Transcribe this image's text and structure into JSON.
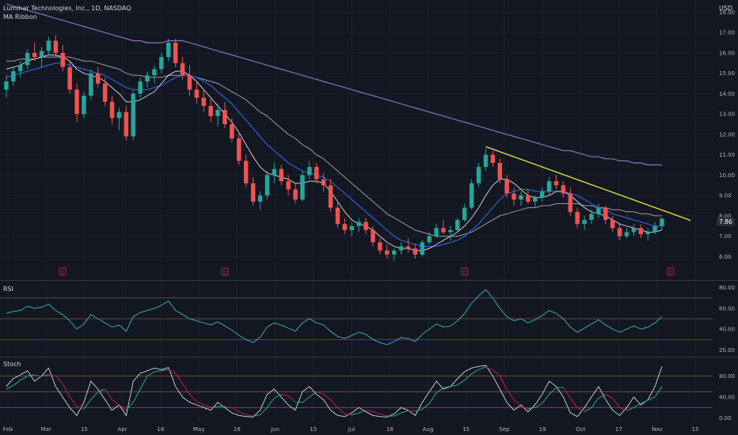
{
  "header": {
    "symbol": "Luminar Technologies, Inc., 1D, NASDAQ",
    "indicator": "MA Ribbon",
    "currency": "USD"
  },
  "panes": {
    "rsi_label": "RSI",
    "stoch_label": "Stoch"
  },
  "colors": {
    "background": "#131722",
    "grid": "#1e222d",
    "up": "#26a69a",
    "down": "#ef5350",
    "ma_fast": "#c9cbd4",
    "ma_mid": "#2f5fd8",
    "ma_slow": "#9a9aa6",
    "ma_long": "#8e6fb8",
    "trendline": "#e8e83a",
    "rsi": "#3aa9a0",
    "stoch_k": "#d1d4dc",
    "stoch_d_up": "#26a69a",
    "stoch_d_down": "#c2185b",
    "earnings": "#c2185b"
  },
  "chart_data": [
    {
      "type": "candlestick",
      "pane": "price",
      "y_ticks": [
        "18.00",
        "17.00",
        "16.00",
        "15.00",
        "14.00",
        "13.00",
        "12.00",
        "11.00",
        "10.00",
        "9.00",
        "8.00",
        "7.00",
        "6.00"
      ],
      "ylim": [
        5.2,
        18.6
      ],
      "last_price": "7.86",
      "x_ticks": [
        "Feb",
        "Mar",
        "15",
        "Apr",
        "18",
        "May",
        "16",
        "Jun",
        "15",
        "Jul",
        "18",
        "Aug",
        "15",
        "Sep",
        "19",
        "Oct",
        "17",
        "Nov",
        "15"
      ],
      "earnings_markers": [
        "E",
        "E",
        "E",
        "E"
      ],
      "ohlc": [
        [
          14.2,
          14.9,
          13.8,
          14.6
        ],
        [
          14.6,
          15.3,
          14.4,
          15.1
        ],
        [
          15.1,
          15.6,
          14.8,
          15.4
        ],
        [
          15.4,
          16.2,
          15.2,
          16.0
        ],
        [
          16.0,
          16.5,
          15.6,
          15.8
        ],
        [
          15.8,
          16.3,
          15.3,
          16.1
        ],
        [
          16.1,
          16.8,
          15.9,
          16.6
        ],
        [
          16.6,
          16.9,
          15.8,
          16.0
        ],
        [
          16.0,
          16.4,
          15.1,
          15.3
        ],
        [
          15.3,
          15.6,
          14.0,
          14.2
        ],
        [
          14.2,
          14.5,
          12.6,
          13.0
        ],
        [
          13.0,
          14.1,
          12.8,
          13.9
        ],
        [
          13.9,
          15.2,
          13.7,
          15.0
        ],
        [
          15.0,
          15.3,
          14.3,
          14.5
        ],
        [
          14.5,
          14.8,
          13.4,
          13.6
        ],
        [
          13.6,
          13.9,
          12.5,
          12.8
        ],
        [
          12.8,
          13.3,
          12.2,
          13.1
        ],
        [
          13.1,
          13.4,
          11.7,
          11.9
        ],
        [
          11.9,
          14.2,
          11.7,
          14.0
        ],
        [
          14.0,
          14.8,
          13.8,
          14.6
        ],
        [
          14.6,
          15.1,
          14.3,
          14.9
        ],
        [
          14.9,
          15.4,
          14.5,
          15.2
        ],
        [
          15.2,
          16.0,
          15.0,
          15.8
        ],
        [
          15.8,
          16.7,
          15.6,
          16.5
        ],
        [
          16.5,
          16.7,
          15.3,
          15.5
        ],
        [
          15.5,
          15.8,
          14.7,
          14.9
        ],
        [
          14.9,
          15.4,
          13.9,
          14.2
        ],
        [
          14.2,
          14.6,
          13.5,
          13.8
        ],
        [
          13.8,
          14.2,
          13.1,
          13.4
        ],
        [
          13.4,
          13.8,
          12.6,
          12.9
        ],
        [
          12.9,
          13.5,
          12.4,
          13.2
        ],
        [
          13.2,
          13.6,
          12.3,
          12.5
        ],
        [
          12.5,
          12.8,
          11.6,
          11.8
        ],
        [
          11.8,
          12.1,
          10.5,
          10.7
        ],
        [
          10.7,
          11.0,
          9.4,
          9.6
        ],
        [
          9.6,
          9.9,
          8.5,
          8.7
        ],
        [
          8.7,
          9.2,
          8.3,
          9.0
        ],
        [
          9.0,
          10.2,
          8.8,
          10.0
        ],
        [
          10.0,
          10.6,
          9.6,
          10.3
        ],
        [
          10.3,
          10.5,
          9.5,
          9.7
        ],
        [
          9.7,
          10.0,
          9.0,
          9.3
        ],
        [
          9.3,
          9.6,
          8.6,
          8.8
        ],
        [
          8.8,
          10.2,
          8.7,
          10.0
        ],
        [
          10.0,
          10.7,
          9.8,
          10.4
        ],
        [
          10.4,
          10.6,
          9.6,
          9.8
        ],
        [
          9.8,
          10.1,
          9.2,
          9.5
        ],
        [
          9.5,
          9.8,
          8.2,
          8.4
        ],
        [
          8.4,
          8.7,
          7.4,
          7.6
        ],
        [
          7.6,
          7.9,
          7.1,
          7.3
        ],
        [
          7.3,
          7.7,
          7.0,
          7.5
        ],
        [
          7.5,
          7.9,
          7.2,
          7.7
        ],
        [
          7.7,
          7.9,
          7.1,
          7.3
        ],
        [
          7.3,
          7.5,
          6.5,
          6.7
        ],
        [
          6.7,
          6.9,
          6.1,
          6.3
        ],
        [
          6.3,
          6.6,
          5.9,
          6.1
        ],
        [
          6.1,
          6.4,
          5.8,
          6.3
        ],
        [
          6.3,
          6.7,
          6.1,
          6.5
        ],
        [
          6.5,
          6.9,
          6.2,
          6.4
        ],
        [
          6.4,
          6.6,
          5.9,
          6.1
        ],
        [
          6.1,
          6.8,
          6.0,
          6.7
        ],
        [
          6.7,
          7.2,
          6.6,
          7.0
        ],
        [
          7.0,
          7.6,
          6.9,
          7.4
        ],
        [
          7.4,
          7.8,
          7.1,
          7.2
        ],
        [
          7.2,
          7.5,
          6.8,
          7.3
        ],
        [
          7.3,
          7.9,
          7.2,
          7.8
        ],
        [
          7.8,
          8.6,
          7.7,
          8.4
        ],
        [
          8.4,
          9.8,
          8.3,
          9.6
        ],
        [
          9.6,
          10.6,
          9.4,
          10.4
        ],
        [
          10.4,
          11.3,
          10.2,
          11.0
        ],
        [
          11.0,
          11.2,
          10.4,
          10.6
        ],
        [
          10.6,
          10.8,
          9.6,
          9.8
        ],
        [
          9.8,
          10.0,
          8.9,
          9.1
        ],
        [
          9.1,
          9.4,
          8.5,
          8.8
        ],
        [
          8.8,
          9.2,
          8.5,
          9.0
        ],
        [
          9.0,
          9.3,
          8.6,
          8.7
        ],
        [
          8.7,
          9.0,
          8.4,
          8.9
        ],
        [
          8.9,
          9.4,
          8.7,
          9.2
        ],
        [
          9.2,
          9.9,
          9.0,
          9.7
        ],
        [
          9.7,
          10.0,
          9.3,
          9.5
        ],
        [
          9.5,
          9.7,
          8.9,
          9.1
        ],
        [
          9.1,
          9.4,
          8.0,
          8.2
        ],
        [
          8.2,
          8.4,
          7.4,
          7.6
        ],
        [
          7.6,
          8.0,
          7.3,
          7.8
        ],
        [
          7.8,
          8.3,
          7.6,
          8.1
        ],
        [
          8.1,
          8.6,
          7.9,
          8.4
        ],
        [
          8.4,
          8.5,
          7.6,
          7.8
        ],
        [
          7.8,
          8.0,
          7.2,
          7.4
        ],
        [
          7.4,
          7.6,
          6.8,
          7.0
        ],
        [
          7.0,
          7.4,
          6.9,
          7.2
        ],
        [
          7.2,
          7.6,
          7.0,
          7.4
        ],
        [
          7.4,
          7.6,
          6.9,
          7.1
        ],
        [
          7.1,
          7.4,
          6.8,
          7.2
        ],
        [
          7.2,
          7.7,
          7.1,
          7.5
        ],
        [
          7.5,
          7.9,
          7.3,
          7.86
        ]
      ],
      "ma_fast": [
        15.2,
        15.3,
        15.4,
        15.6,
        15.7,
        15.8,
        15.9,
        15.9,
        15.8,
        15.6,
        15.2,
        15.0,
        14.9,
        14.8,
        14.6,
        14.3,
        14.0,
        13.6,
        13.6,
        13.7,
        13.9,
        14.1,
        14.5,
        14.9,
        15.1,
        15.1,
        14.9,
        14.6,
        14.2,
        13.8,
        13.4,
        13.0,
        12.6,
        12.1,
        11.5,
        10.9,
        10.4,
        10.1,
        10.0,
        9.9,
        9.8,
        9.6,
        9.6,
        9.7,
        9.7,
        9.6,
        9.2,
        8.7,
        8.2,
        7.8,
        7.6,
        7.5,
        7.3,
        7.0,
        6.7,
        6.5,
        6.4,
        6.4,
        6.3,
        6.3,
        6.4,
        6.6,
        6.8,
        7.0,
        7.2,
        7.5,
        7.9,
        8.4,
        9.0,
        9.5,
        9.8,
        9.8,
        9.6,
        9.3,
        9.0,
        8.9,
        8.9,
        9.0,
        9.2,
        9.2,
        9.0,
        8.7,
        8.4,
        8.2,
        8.1,
        8.0,
        7.8,
        7.6,
        7.5,
        7.4,
        7.3,
        7.2,
        7.2,
        7.3
      ],
      "ma_mid": [
        14.8,
        14.9,
        15.0,
        15.1,
        15.2,
        15.3,
        15.4,
        15.5,
        15.5,
        15.4,
        15.3,
        15.2,
        15.1,
        15.0,
        14.9,
        14.7,
        14.5,
        14.3,
        14.2,
        14.2,
        14.2,
        14.3,
        14.4,
        14.6,
        14.8,
        14.9,
        14.9,
        14.8,
        14.6,
        14.4,
        14.1,
        13.8,
        13.5,
        13.1,
        12.7,
        12.3,
        11.9,
        11.5,
        11.2,
        10.9,
        10.6,
        10.4,
        10.2,
        10.1,
        10.0,
        9.9,
        9.7,
        9.4,
        9.1,
        8.8,
        8.5,
        8.2,
        7.9,
        7.6,
        7.3,
        7.0,
        6.8,
        6.7,
        6.6,
        6.5,
        6.5,
        6.5,
        6.6,
        6.7,
        6.8,
        7.0,
        7.3,
        7.6,
        8.0,
        8.4,
        8.8,
        9.1,
        9.2,
        9.3,
        9.3,
        9.2,
        9.2,
        9.2,
        9.2,
        9.2,
        9.1,
        9.0,
        8.8,
        8.6,
        8.4,
        8.3,
        8.1,
        8.0,
        7.9,
        7.8,
        7.7,
        7.6,
        7.5,
        7.5
      ],
      "ma_slow": [
        15.6,
        15.6,
        15.7,
        15.7,
        15.7,
        15.8,
        15.8,
        15.8,
        15.8,
        15.8,
        15.7,
        15.6,
        15.6,
        15.5,
        15.4,
        15.3,
        15.2,
        15.0,
        14.9,
        14.9,
        14.8,
        14.8,
        14.8,
        14.9,
        14.9,
        14.9,
        14.9,
        14.8,
        14.7,
        14.6,
        14.5,
        14.3,
        14.1,
        13.9,
        13.7,
        13.4,
        13.1,
        12.9,
        12.6,
        12.3,
        12.0,
        11.8,
        11.5,
        11.3,
        11.0,
        10.8,
        10.5,
        10.2,
        9.9,
        9.6,
        9.3,
        9.0,
        8.7,
        8.4,
        8.1,
        7.9,
        7.7,
        7.5,
        7.3,
        7.2,
        7.1,
        7.0,
        7.0,
        7.0,
        7.0,
        7.1,
        7.2,
        7.4,
        7.6,
        7.8,
        8.0,
        8.1,
        8.2,
        8.3,
        8.4,
        8.4,
        8.5,
        8.5,
        8.6,
        8.6,
        8.6,
        8.6,
        8.5,
        8.5,
        8.4,
        8.4,
        8.3,
        8.3,
        8.2,
        8.2,
        8.1,
        8.1,
        8.0,
        8.0
      ],
      "ma_long": [
        18.4,
        18.3,
        18.2,
        18.1,
        18.0,
        17.9,
        17.8,
        17.7,
        17.6,
        17.5,
        17.4,
        17.3,
        17.2,
        17.1,
        17.0,
        16.9,
        16.8,
        16.7,
        16.6,
        16.6,
        16.5,
        16.5,
        16.5,
        16.6,
        16.6,
        16.6,
        16.5,
        16.4,
        16.3,
        16.2,
        16.1,
        16.0,
        15.9,
        15.8,
        15.7,
        15.6,
        15.5,
        15.4,
        15.3,
        15.2,
        15.1,
        15.0,
        14.9,
        14.8,
        14.7,
        14.6,
        14.5,
        14.4,
        14.3,
        14.2,
        14.1,
        14.0,
        13.9,
        13.8,
        13.7,
        13.6,
        13.5,
        13.4,
        13.3,
        13.2,
        13.1,
        13.0,
        12.9,
        12.8,
        12.7,
        12.6,
        12.5,
        12.4,
        12.3,
        12.2,
        12.1,
        12.0,
        11.9,
        11.8,
        11.7,
        11.6,
        11.5,
        11.4,
        11.3,
        11.2,
        11.2,
        11.1,
        11.0,
        10.9,
        10.9,
        10.8,
        10.8,
        10.7,
        10.7,
        10.6,
        10.6,
        10.5,
        10.5,
        10.5
      ],
      "trendline": [
        [
          68,
          11.4
        ],
        [
          93,
          8.05
        ]
      ]
    },
    {
      "type": "line",
      "pane": "rsi",
      "y_ticks": [
        "80.00",
        "60.00",
        "40.00",
        "20.00"
      ],
      "ylim": [
        15,
        85
      ],
      "bands": [
        70,
        50,
        30
      ],
      "values": [
        55,
        57,
        58,
        62,
        60,
        61,
        64,
        58,
        54,
        48,
        40,
        45,
        54,
        50,
        46,
        42,
        44,
        38,
        52,
        56,
        58,
        60,
        63,
        67,
        58,
        54,
        50,
        48,
        46,
        44,
        47,
        43,
        39,
        34,
        30,
        27,
        32,
        42,
        46,
        44,
        41,
        38,
        46,
        50,
        46,
        44,
        38,
        33,
        31,
        34,
        37,
        35,
        30,
        27,
        25,
        28,
        32,
        31,
        28,
        35,
        40,
        45,
        42,
        43,
        48,
        55,
        65,
        72,
        78,
        70,
        60,
        52,
        48,
        50,
        46,
        49,
        53,
        58,
        55,
        50,
        42,
        37,
        41,
        45,
        49,
        44,
        40,
        37,
        40,
        43,
        40,
        42,
        46,
        52
      ]
    },
    {
      "type": "line",
      "pane": "stoch",
      "y_ticks": [
        "80.00",
        "40.00",
        "0.00"
      ],
      "ylim": [
        -8,
        112
      ],
      "bands": [
        80,
        50,
        20
      ],
      "k_values": [
        60,
        75,
        82,
        90,
        70,
        80,
        95,
        60,
        40,
        20,
        5,
        30,
        70,
        55,
        35,
        15,
        25,
        5,
        70,
        85,
        90,
        95,
        92,
        96,
        60,
        40,
        30,
        25,
        20,
        15,
        30,
        20,
        10,
        5,
        3,
        2,
        15,
        45,
        55,
        40,
        25,
        15,
        50,
        60,
        45,
        35,
        15,
        5,
        3,
        10,
        20,
        12,
        5,
        3,
        2,
        8,
        20,
        15,
        5,
        30,
        50,
        70,
        55,
        60,
        75,
        88,
        95,
        98,
        100,
        80,
        55,
        30,
        15,
        25,
        12,
        25,
        45,
        70,
        60,
        40,
        10,
        3,
        20,
        40,
        60,
        35,
        15,
        5,
        20,
        40,
        25,
        35,
        60,
        98
      ],
      "d_values": [
        55,
        62,
        72,
        80,
        82,
        80,
        82,
        80,
        65,
        40,
        22,
        18,
        35,
        50,
        55,
        35,
        25,
        15,
        30,
        55,
        80,
        88,
        90,
        92,
        85,
        65,
        45,
        32,
        25,
        20,
        22,
        22,
        20,
        12,
        6,
        4,
        6,
        20,
        38,
        45,
        42,
        30,
        30,
        40,
        50,
        45,
        35,
        20,
        8,
        6,
        10,
        15,
        12,
        8,
        4,
        4,
        10,
        14,
        13,
        17,
        28,
        48,
        58,
        60,
        63,
        72,
        84,
        92,
        97,
        92,
        80,
        55,
        35,
        22,
        18,
        20,
        28,
        45,
        58,
        58,
        38,
        20,
        12,
        20,
        38,
        45,
        38,
        20,
        14,
        20,
        28,
        34,
        40,
        60
      ]
    }
  ]
}
